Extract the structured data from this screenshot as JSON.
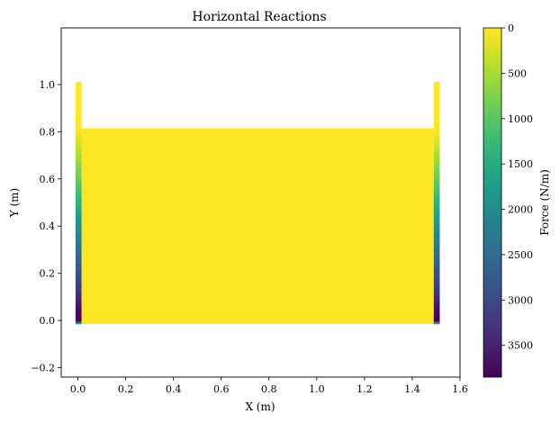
{
  "chart_data": {
    "type": "heatmap",
    "title": "Horizontal Reactions",
    "xlabel": "X (m)",
    "ylabel": "Y (m)",
    "xlim": [
      -0.07,
      1.6
    ],
    "ylim": [
      -0.24,
      1.24
    ],
    "x_ticks": [
      "0.0",
      "0.2",
      "0.4",
      "0.6",
      "0.8",
      "1.0",
      "1.2",
      "1.4",
      "1.6"
    ],
    "y_ticks": [
      "−0.2",
      "0.0",
      "0.2",
      "0.4",
      "0.6",
      "0.8",
      "1.0"
    ],
    "colorbar": {
      "label": "Force (N/m)",
      "range": [
        0,
        3850
      ],
      "inverted": true,
      "colormap": "viridis",
      "ticks": [
        "0",
        "500",
        "1000",
        "1500",
        "2000",
        "2500",
        "3000",
        "3500"
      ]
    },
    "regions": [
      {
        "name": "interior",
        "x": [
          0.015,
          1.49
        ],
        "y": [
          -0.015,
          0.815
        ],
        "force": 0
      },
      {
        "name": "left-wall",
        "x": [
          -0.01,
          0.015
        ],
        "y": [
          -0.015,
          1.01
        ],
        "force_profile": "hydrostatic"
      },
      {
        "name": "right-wall",
        "x": [
          1.49,
          1.515
        ],
        "y": [
          -0.015,
          1.01
        ],
        "force_profile": "hydrostatic"
      }
    ],
    "wall_profile": {
      "y": [
        -0.015,
        0.0,
        0.05,
        0.1,
        0.15,
        0.2,
        0.25,
        0.3,
        0.35,
        0.4,
        0.45,
        0.5,
        0.55,
        0.6,
        0.65,
        0.7,
        0.75,
        0.8,
        0.85,
        1.01
      ],
      "force": [
        1500,
        3850,
        3700,
        3400,
        3150,
        2900,
        2650,
        2400,
        2150,
        1900,
        1650,
        1400,
        1150,
        900,
        700,
        480,
        250,
        60,
        0,
        0
      ]
    },
    "colors": {
      "viridis": [
        "#440154",
        "#482878",
        "#3e4989",
        "#31688e",
        "#26828e",
        "#1f9e89",
        "#35b779",
        "#6ece58",
        "#b5de2b",
        "#fde725"
      ]
    }
  }
}
